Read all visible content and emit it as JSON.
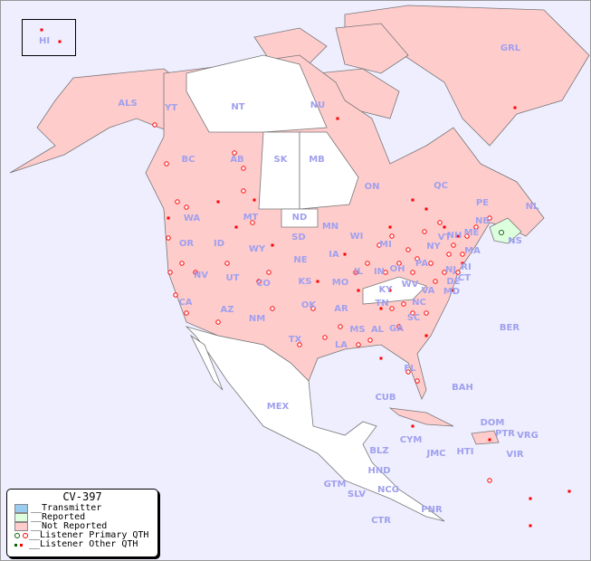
{
  "title": "CV-397",
  "legend": {
    "items": [
      {
        "label": "__Transmitter",
        "color": "#99ccee"
      },
      {
        "label": "__Reported",
        "color": "#ddffdd"
      },
      {
        "label": "__Not Reported",
        "color": "#ffcccc"
      },
      {
        "label": "__Listener Primary QTH",
        "colors": [
          "#006600",
          "#ff0000"
        ]
      },
      {
        "label": "__Listener Other QTH",
        "colors": [
          "#006600",
          "#ff0000"
        ]
      }
    ]
  },
  "colors": {
    "ocean": "#eeeeff",
    "not_reported": "#ffcccc",
    "reported": "#ddffdd",
    "no_data": "#ffffff",
    "listener": "#ff0000",
    "label": "#a0a0ee"
  },
  "region_labels": [
    "HI",
    "ALS",
    "YT",
    "NT",
    "NU",
    "GRL",
    "BC",
    "AB",
    "SK",
    "MB",
    "ON",
    "QC",
    "NL",
    "PE",
    "NB",
    "NS",
    "WA",
    "OR",
    "ID",
    "MT",
    "WY",
    "ND",
    "SD",
    "NE",
    "MN",
    "WI",
    "IA",
    "IL",
    "IN",
    "OH",
    "MI",
    "PA",
    "NY",
    "VT",
    "NH",
    "ME",
    "MA",
    "RI",
    "CT",
    "NJ",
    "DE",
    "MD",
    "WV",
    "VA",
    "KY",
    "TN",
    "NC",
    "SC",
    "GA",
    "AL",
    "MS",
    "LA",
    "AR",
    "MO",
    "KS",
    "OK",
    "TX",
    "NM",
    "CO",
    "UT",
    "AZ",
    "NV",
    "CA",
    "FL",
    "MEX",
    "CUB",
    "BAH",
    "BER",
    "DOM",
    "PTR",
    "VRG",
    "VIR",
    "CYM",
    "JMC",
    "HTI",
    "BLZ",
    "HND",
    "GTM",
    "SLV",
    "NCG",
    "CTR",
    "PNR"
  ]
}
